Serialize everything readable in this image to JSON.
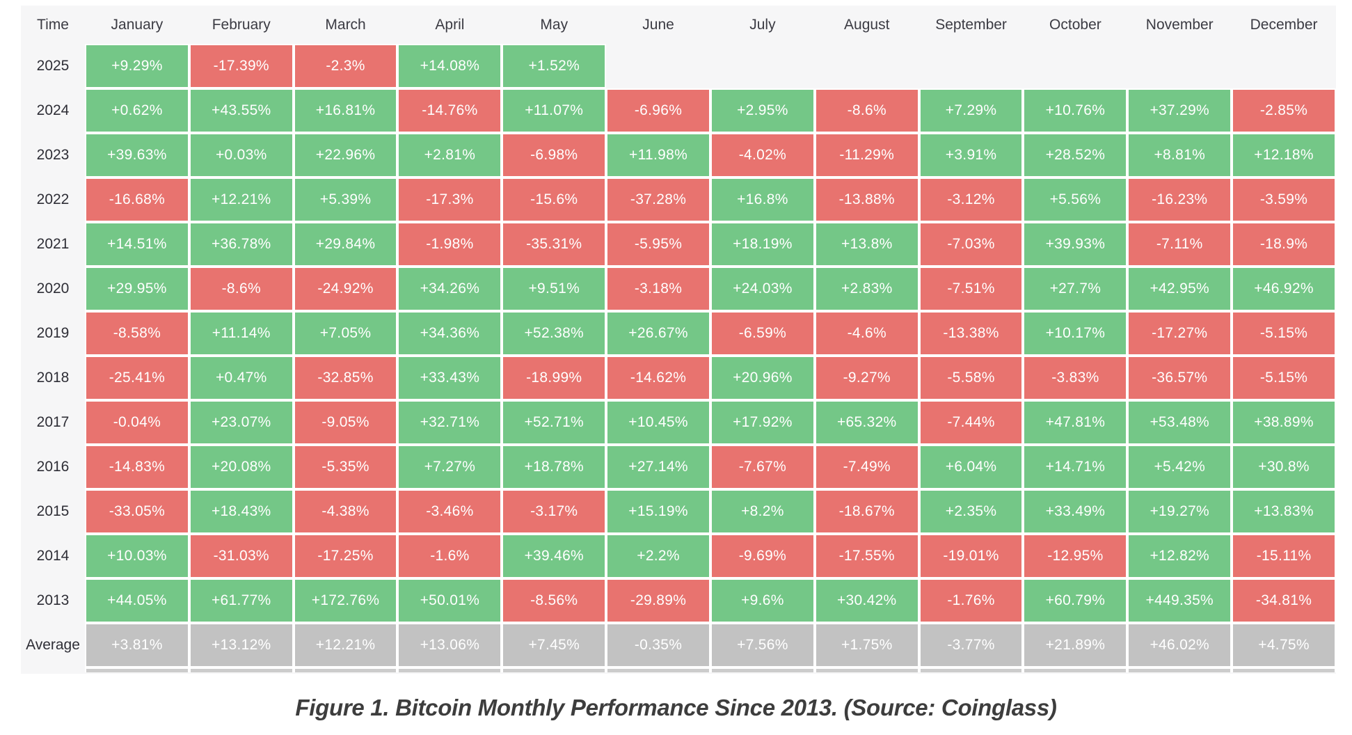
{
  "caption": "Figure 1. Bitcoin Monthly Performance Since 2013. (Source: Coinglass)",
  "colors": {
    "positive": "#74c787",
    "negative": "#e8736f",
    "average_row": "#c2c2c2",
    "table_background": "#f6f6f7",
    "cell_text": "#ffffff",
    "header_text": "#3b3b43"
  },
  "chart_data": {
    "type": "heatmap",
    "title": "Bitcoin Monthly Performance Since 2013",
    "source": "Coinglass",
    "columns": [
      "Time",
      "January",
      "February",
      "March",
      "April",
      "May",
      "June",
      "July",
      "August",
      "September",
      "October",
      "November",
      "December"
    ],
    "rows": [
      {
        "label": "2025",
        "values": [
          "+9.29%",
          "-17.39%",
          "-2.3%",
          "+14.08%",
          "+1.52%",
          "",
          "",
          "",
          "",
          "",
          "",
          ""
        ]
      },
      {
        "label": "2024",
        "values": [
          "+0.62%",
          "+43.55%",
          "+16.81%",
          "-14.76%",
          "+11.07%",
          "-6.96%",
          "+2.95%",
          "-8.6%",
          "+7.29%",
          "+10.76%",
          "+37.29%",
          "-2.85%"
        ]
      },
      {
        "label": "2023",
        "values": [
          "+39.63%",
          "+0.03%",
          "+22.96%",
          "+2.81%",
          "-6.98%",
          "+11.98%",
          "-4.02%",
          "-11.29%",
          "+3.91%",
          "+28.52%",
          "+8.81%",
          "+12.18%"
        ]
      },
      {
        "label": "2022",
        "values": [
          "-16.68%",
          "+12.21%",
          "+5.39%",
          "-17.3%",
          "-15.6%",
          "-37.28%",
          "+16.8%",
          "-13.88%",
          "-3.12%",
          "+5.56%",
          "-16.23%",
          "-3.59%"
        ]
      },
      {
        "label": "2021",
        "values": [
          "+14.51%",
          "+36.78%",
          "+29.84%",
          "-1.98%",
          "-35.31%",
          "-5.95%",
          "+18.19%",
          "+13.8%",
          "-7.03%",
          "+39.93%",
          "-7.11%",
          "-18.9%"
        ]
      },
      {
        "label": "2020",
        "values": [
          "+29.95%",
          "-8.6%",
          "-24.92%",
          "+34.26%",
          "+9.51%",
          "-3.18%",
          "+24.03%",
          "+2.83%",
          "-7.51%",
          "+27.7%",
          "+42.95%",
          "+46.92%"
        ]
      },
      {
        "label": "2019",
        "values": [
          "-8.58%",
          "+11.14%",
          "+7.05%",
          "+34.36%",
          "+52.38%",
          "+26.67%",
          "-6.59%",
          "-4.6%",
          "-13.38%",
          "+10.17%",
          "-17.27%",
          "-5.15%"
        ]
      },
      {
        "label": "2018",
        "values": [
          "-25.41%",
          "+0.47%",
          "-32.85%",
          "+33.43%",
          "-18.99%",
          "-14.62%",
          "+20.96%",
          "-9.27%",
          "-5.58%",
          "-3.83%",
          "-36.57%",
          "-5.15%"
        ]
      },
      {
        "label": "2017",
        "values": [
          "-0.04%",
          "+23.07%",
          "-9.05%",
          "+32.71%",
          "+52.71%",
          "+10.45%",
          "+17.92%",
          "+65.32%",
          "-7.44%",
          "+47.81%",
          "+53.48%",
          "+38.89%"
        ]
      },
      {
        "label": "2016",
        "values": [
          "-14.83%",
          "+20.08%",
          "-5.35%",
          "+7.27%",
          "+18.78%",
          "+27.14%",
          "-7.67%",
          "-7.49%",
          "+6.04%",
          "+14.71%",
          "+5.42%",
          "+30.8%"
        ]
      },
      {
        "label": "2015",
        "values": [
          "-33.05%",
          "+18.43%",
          "-4.38%",
          "-3.46%",
          "-3.17%",
          "+15.19%",
          "+8.2%",
          "-18.67%",
          "+2.35%",
          "+33.49%",
          "+19.27%",
          "+13.83%"
        ]
      },
      {
        "label": "2014",
        "values": [
          "+10.03%",
          "-31.03%",
          "-17.25%",
          "-1.6%",
          "+39.46%",
          "+2.2%",
          "-9.69%",
          "-17.55%",
          "-19.01%",
          "-12.95%",
          "+12.82%",
          "-15.11%"
        ]
      },
      {
        "label": "2013",
        "values": [
          "+44.05%",
          "+61.77%",
          "+172.76%",
          "+50.01%",
          "-8.56%",
          "-29.89%",
          "+9.6%",
          "+30.42%",
          "-1.76%",
          "+60.79%",
          "+449.35%",
          "-34.81%"
        ]
      },
      {
        "label": "Average",
        "values": [
          "+3.81%",
          "+13.12%",
          "+12.21%",
          "+13.06%",
          "+7.45%",
          "-0.35%",
          "+7.56%",
          "+1.75%",
          "-3.77%",
          "+21.89%",
          "+46.02%",
          "+4.75%"
        ]
      }
    ]
  }
}
